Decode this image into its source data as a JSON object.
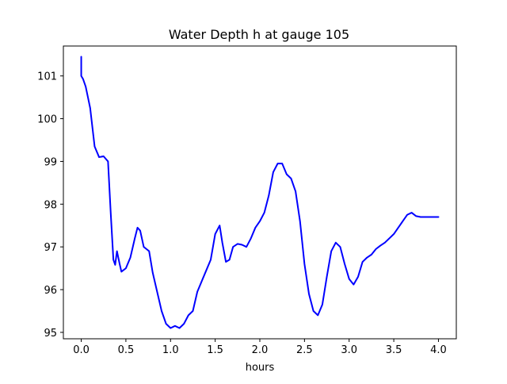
{
  "chart_data": {
    "type": "line",
    "title": "Water Depth h at gauge 105",
    "xlabel": "hours",
    "ylabel": "",
    "xlim": [
      -0.2,
      4.2
    ],
    "ylim": [
      94.85,
      101.7
    ],
    "xticks": [
      0.0,
      0.5,
      1.0,
      1.5,
      2.0,
      2.5,
      3.0,
      3.5,
      4.0
    ],
    "xtick_labels": [
      "0.0",
      "0.5",
      "1.0",
      "1.5",
      "2.0",
      "2.5",
      "3.0",
      "3.5",
      "4.0"
    ],
    "yticks": [
      95,
      96,
      97,
      98,
      99,
      100,
      101
    ],
    "ytick_labels": [
      "95",
      "96",
      "97",
      "98",
      "99",
      "100",
      "101"
    ],
    "grid": false,
    "line_color": "#0000ff",
    "series": [
      {
        "x": [
          0.0,
          0.0,
          0.0,
          0.02,
          0.05,
          0.1,
          0.15,
          0.2,
          0.25,
          0.3,
          0.33,
          0.36,
          0.38,
          0.4,
          0.43,
          0.45,
          0.5,
          0.55,
          0.6,
          0.63,
          0.66,
          0.7,
          0.73,
          0.76,
          0.8,
          0.85,
          0.9,
          0.95,
          1.0,
          1.05,
          1.1,
          1.15,
          1.2,
          1.25,
          1.3,
          1.35,
          1.4,
          1.45,
          1.5,
          1.55,
          1.58,
          1.62,
          1.66,
          1.7,
          1.75,
          1.8,
          1.85,
          1.9,
          1.95,
          2.0,
          2.05,
          2.1,
          2.15,
          2.2,
          2.25,
          2.3,
          2.35,
          2.4,
          2.45,
          2.5,
          2.55,
          2.6,
          2.65,
          2.7,
          2.75,
          2.8,
          2.85,
          2.9,
          2.95,
          3.0,
          3.05,
          3.1,
          3.15,
          3.2,
          3.25,
          3.3,
          3.35,
          3.4,
          3.45,
          3.5,
          3.55,
          3.6,
          3.65,
          3.7,
          3.75,
          3.8,
          3.85,
          3.9,
          3.95,
          4.0
        ],
        "y": [
          101.45,
          101.0,
          101.0,
          100.93,
          100.75,
          100.25,
          99.35,
          99.1,
          99.12,
          99.0,
          97.8,
          96.7,
          96.58,
          96.9,
          96.6,
          96.42,
          96.5,
          96.75,
          97.2,
          97.45,
          97.38,
          97.0,
          96.95,
          96.9,
          96.4,
          95.95,
          95.5,
          95.2,
          95.1,
          95.15,
          95.1,
          95.2,
          95.4,
          95.5,
          95.95,
          96.2,
          96.45,
          96.7,
          97.3,
          97.5,
          97.1,
          96.65,
          96.7,
          97.0,
          97.07,
          97.05,
          97.0,
          97.2,
          97.45,
          97.6,
          97.8,
          98.2,
          98.75,
          98.95,
          98.95,
          98.7,
          98.6,
          98.3,
          97.6,
          96.6,
          95.9,
          95.5,
          95.4,
          95.65,
          96.3,
          96.9,
          97.1,
          97.0,
          96.6,
          96.25,
          96.12,
          96.3,
          96.65,
          96.75,
          96.82,
          96.95,
          97.03,
          97.1,
          97.2,
          97.3,
          97.45,
          97.6,
          97.75,
          97.8,
          97.72,
          97.7,
          97.7,
          97.7,
          97.7,
          97.7
        ]
      }
    ]
  }
}
